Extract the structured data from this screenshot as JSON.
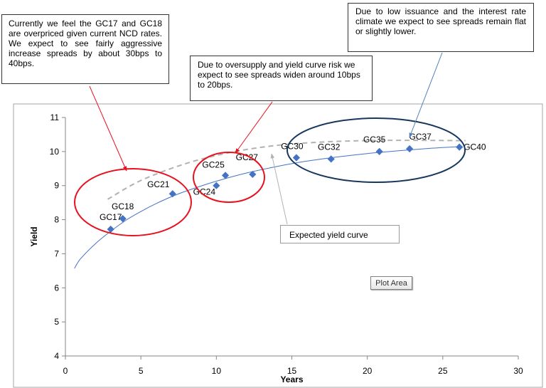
{
  "chart_data": {
    "type": "scatter",
    "title": "",
    "xlabel": "Years",
    "ylabel": "Yield",
    "xlim": [
      0,
      30
    ],
    "ylim": [
      4,
      11
    ],
    "x_ticks": [
      "0",
      "5",
      "10",
      "15",
      "20",
      "25",
      "30"
    ],
    "y_ticks": [
      "4",
      "5",
      "6",
      "7",
      "8",
      "9",
      "10",
      "11"
    ],
    "grid": false,
    "series": [
      {
        "points": [
          {
            "label": "GC17",
            "x": 3.0,
            "y": 7.72
          },
          {
            "label": "GC18",
            "x": 3.8,
            "y": 8.03
          },
          {
            "label": "GC21",
            "x": 7.1,
            "y": 8.76
          },
          {
            "label": "GC24",
            "x": 10.0,
            "y": 9.0
          },
          {
            "label": "GC25",
            "x": 10.6,
            "y": 9.3
          },
          {
            "label": "GC27",
            "x": 12.4,
            "y": 9.33
          },
          {
            "label": "GC30",
            "x": 15.3,
            "y": 9.82
          },
          {
            "label": "GC32",
            "x": 17.6,
            "y": 9.78
          },
          {
            "label": "GC35",
            "x": 20.8,
            "y": 10.0
          },
          {
            "label": "GC37",
            "x": 22.8,
            "y": 10.08
          },
          {
            "label": "GC40",
            "x": 26.1,
            "y": 10.13
          }
        ]
      }
    ],
    "fitted_curve": {
      "x": [
        0.6,
        1,
        2,
        3,
        4,
        5,
        6,
        7,
        8,
        10,
        12,
        14,
        16,
        18,
        20,
        22,
        24,
        26.3
      ],
      "y": [
        6.57,
        6.85,
        7.3,
        7.66,
        7.98,
        8.24,
        8.47,
        8.67,
        8.84,
        9.13,
        9.37,
        9.56,
        9.72,
        9.84,
        9.94,
        10.02,
        10.09,
        10.15
      ]
    },
    "expected_curve": {
      "x": [
        2.8,
        5,
        8,
        11,
        14,
        17,
        20,
        23,
        26.5
      ],
      "y": [
        8.6,
        9.15,
        9.65,
        9.98,
        10.18,
        10.28,
        10.32,
        10.33,
        10.32
      ]
    },
    "colors": {
      "marker": "#4472c4",
      "fit_line": "#4472c4",
      "expected_line": "#b2b2b2",
      "red_circle": "#e8111e",
      "navy_circle": "#17375e",
      "pointer_right": "#4f81bd"
    }
  },
  "annotations": {
    "left": "Currently we feel the GC17 and GC18 are overpriced given current NCD rates. We expect to see fairly aggressive increase spreads by about 30bps to 40bps.",
    "middle": "Due to oversupply and yield curve risk we expect to see spreads widen around 10bps to 20bps.",
    "right": "Due to low issuance and the interest rate climate we expect to see spreads remain flat or slightly lower.",
    "expected": "Expected yield curve",
    "plot_area": "Plot Area"
  }
}
